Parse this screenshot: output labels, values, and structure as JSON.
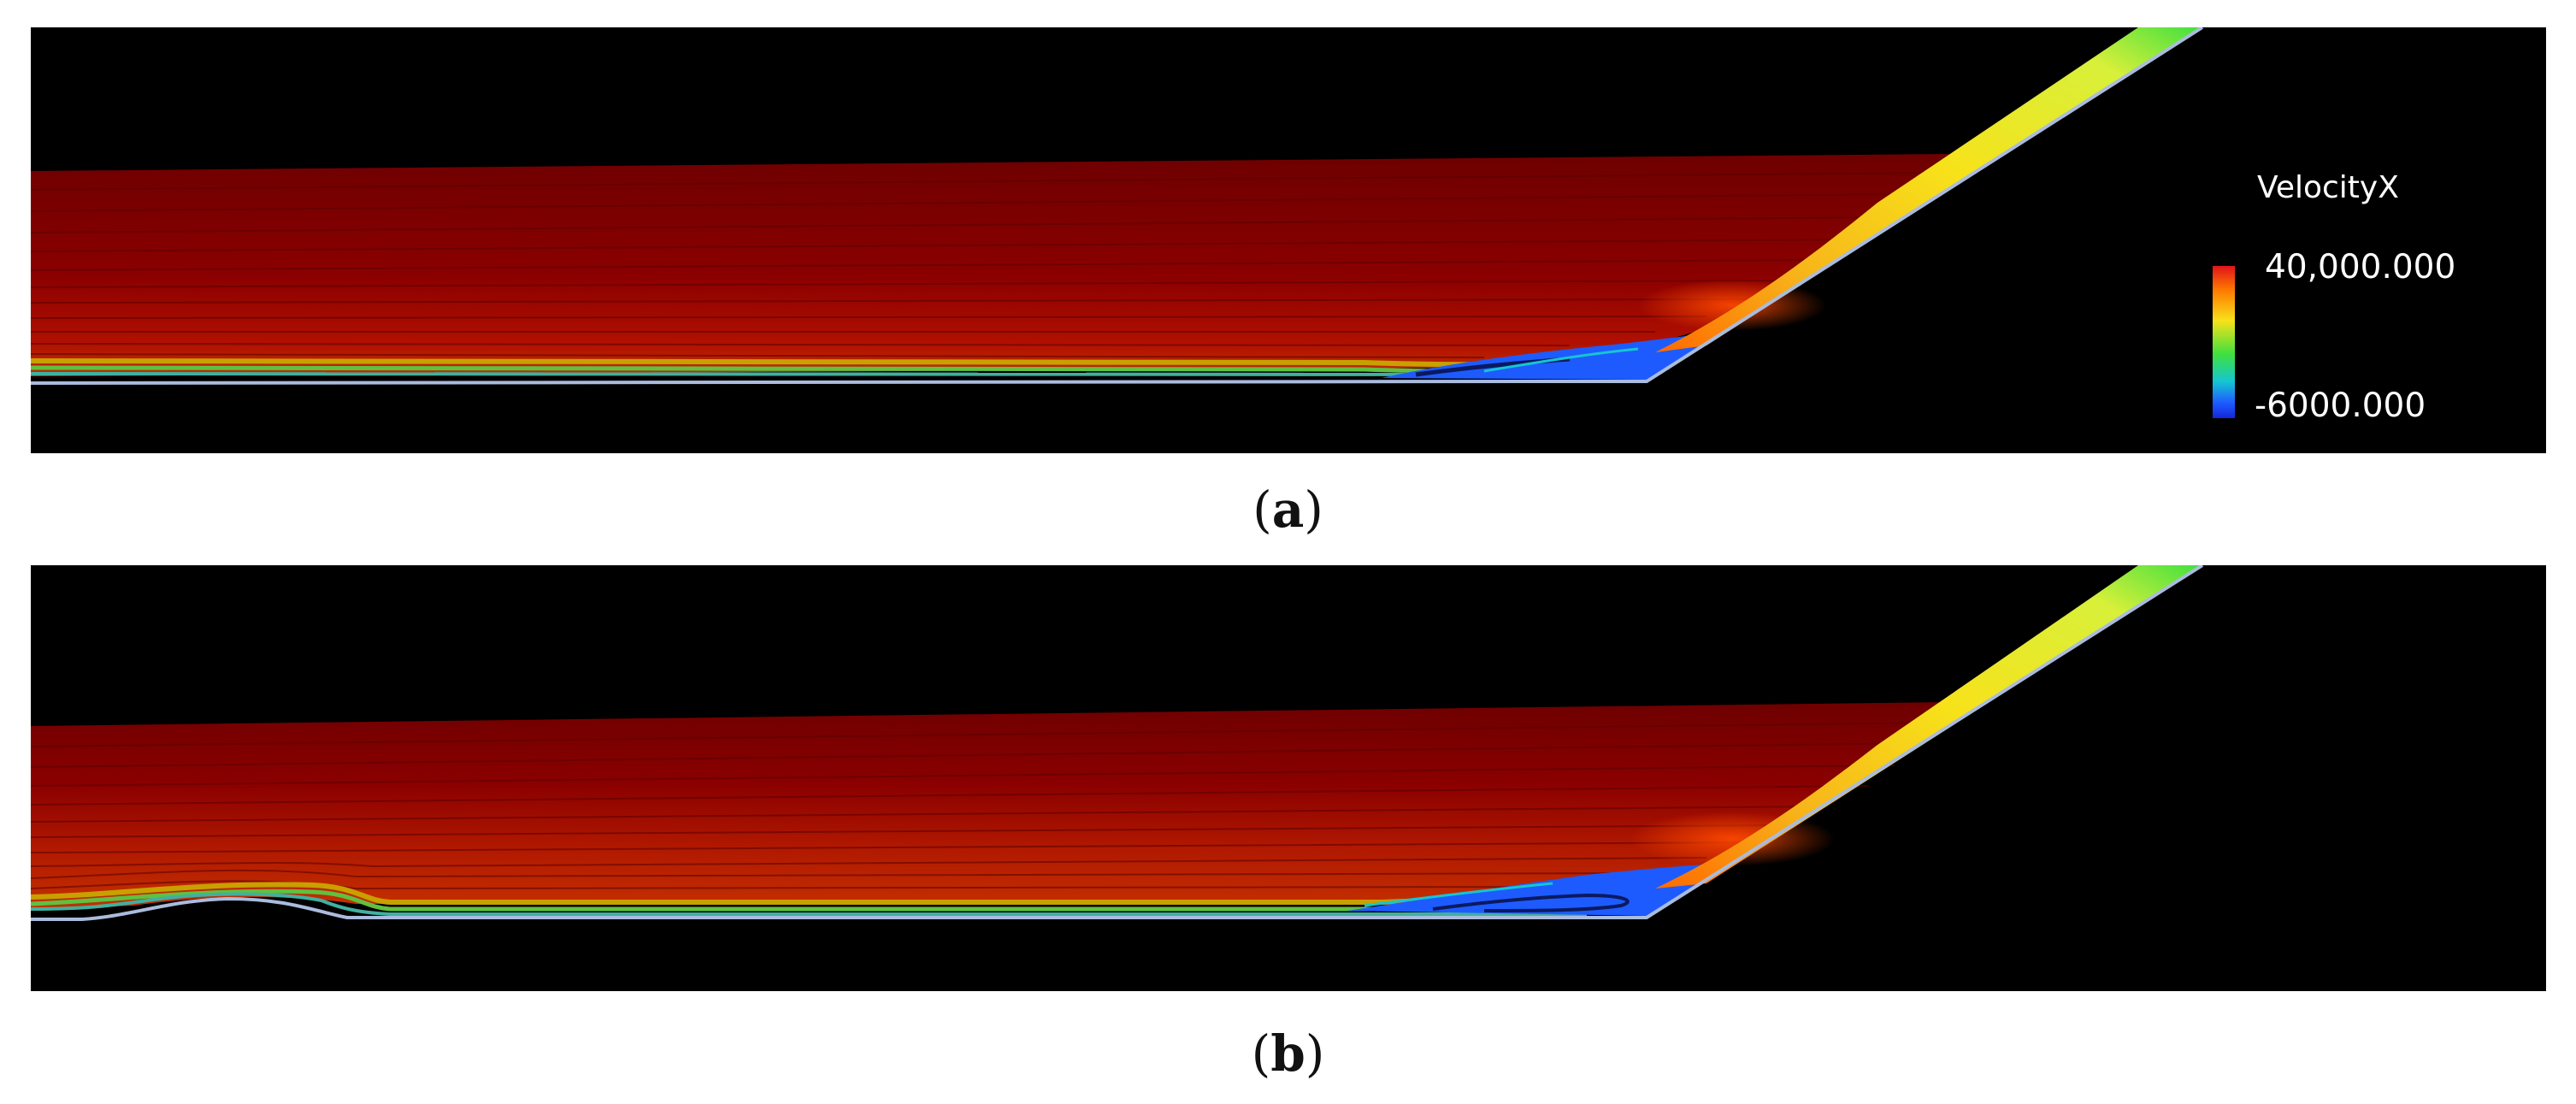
{
  "panels": [
    {
      "id": "a",
      "caption_letter": "a"
    },
    {
      "id": "b",
      "caption_letter": "b"
    }
  ],
  "legend": {
    "title": "VelocityX",
    "max_label": "40,000.000",
    "min_label": "-6000.000",
    "max_value": 40000,
    "min_value": -6000,
    "colormap": [
      "#e0141a",
      "#ff7a00",
      "#f7e21a",
      "#3fe03f",
      "#14c6d2",
      "#1e5bff",
      "#1427d9"
    ]
  },
  "colors": {
    "background": "#000000",
    "freestream": "#8b0000",
    "shock": "#f7e21a",
    "recirculation": "#1e5bff",
    "wall": "#aabbdd"
  }
}
